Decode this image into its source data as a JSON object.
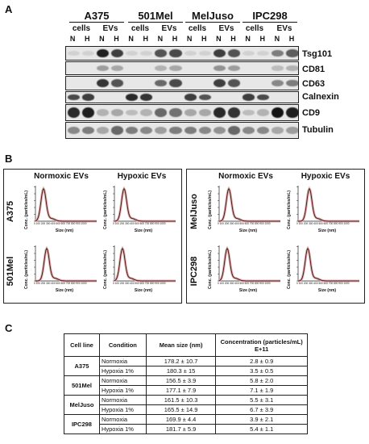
{
  "panel_a": {
    "letter": "A",
    "cell_lines": [
      "A375",
      "501Mel",
      "MelJuso",
      "IPC298"
    ],
    "sub_headers": [
      "cells",
      "EVs"
    ],
    "conditions": [
      "N",
      "H"
    ],
    "markers": [
      "Tsg101",
      "CD81",
      "CD63",
      "Calnexin",
      "CD9",
      "Tubulin"
    ]
  },
  "panel_b": {
    "letter": "B",
    "column_headers": [
      "Normoxic EVs",
      "Hypoxic EVs"
    ],
    "left_group": [
      "A375",
      "501Mel"
    ],
    "right_group": [
      "MelJuso",
      "IPC298"
    ],
    "axis_y": "Conc. (particles/mL)",
    "axis_x": "Size (nm)",
    "x_ticks": "0 100 200 300 400 500 600 700 800 900 1000"
  },
  "panel_c": {
    "letter": "C",
    "headers": [
      "Cell line",
      "Condition",
      "Mean size (nm)",
      "Concentration (particles/mL) E+11"
    ],
    "rows": [
      {
        "cell_line": "A375",
        "cond1": "Normoxia",
        "size1": "178.2 ± 10.7",
        "conc1": "2.8 ± 0.9",
        "cond2": "Hypoxia 1%",
        "size2": "180.3 ± 15",
        "conc2": "3.5 ± 0.5"
      },
      {
        "cell_line": "501Mel",
        "cond1": "Normoxia",
        "size1": "156.5 ± 3.9",
        "conc1": "5.8 ± 2.0",
        "cond2": "Hypoxia 1%",
        "size2": "177.1 ± 7.9",
        "conc2": "7.1 ± 1.9"
      },
      {
        "cell_line": "MelJuso",
        "cond1": "Normoxia",
        "size1": "161.5 ± 10.3",
        "conc1": "5.5 ± 3.1",
        "cond2": "Hypoxia 1%",
        "size2": "165.5 ± 14.9",
        "conc2": "6.7 ± 3.9"
      },
      {
        "cell_line": "IPC298",
        "cond1": "Normoxia",
        "size1": "169.9 ± 4.4",
        "conc1": "3.9 ± 2.1",
        "cond2": "Hypoxia 1%",
        "size2": "181.7 ± 5.9",
        "conc2": "5.4 ± 1.1"
      }
    ]
  }
}
